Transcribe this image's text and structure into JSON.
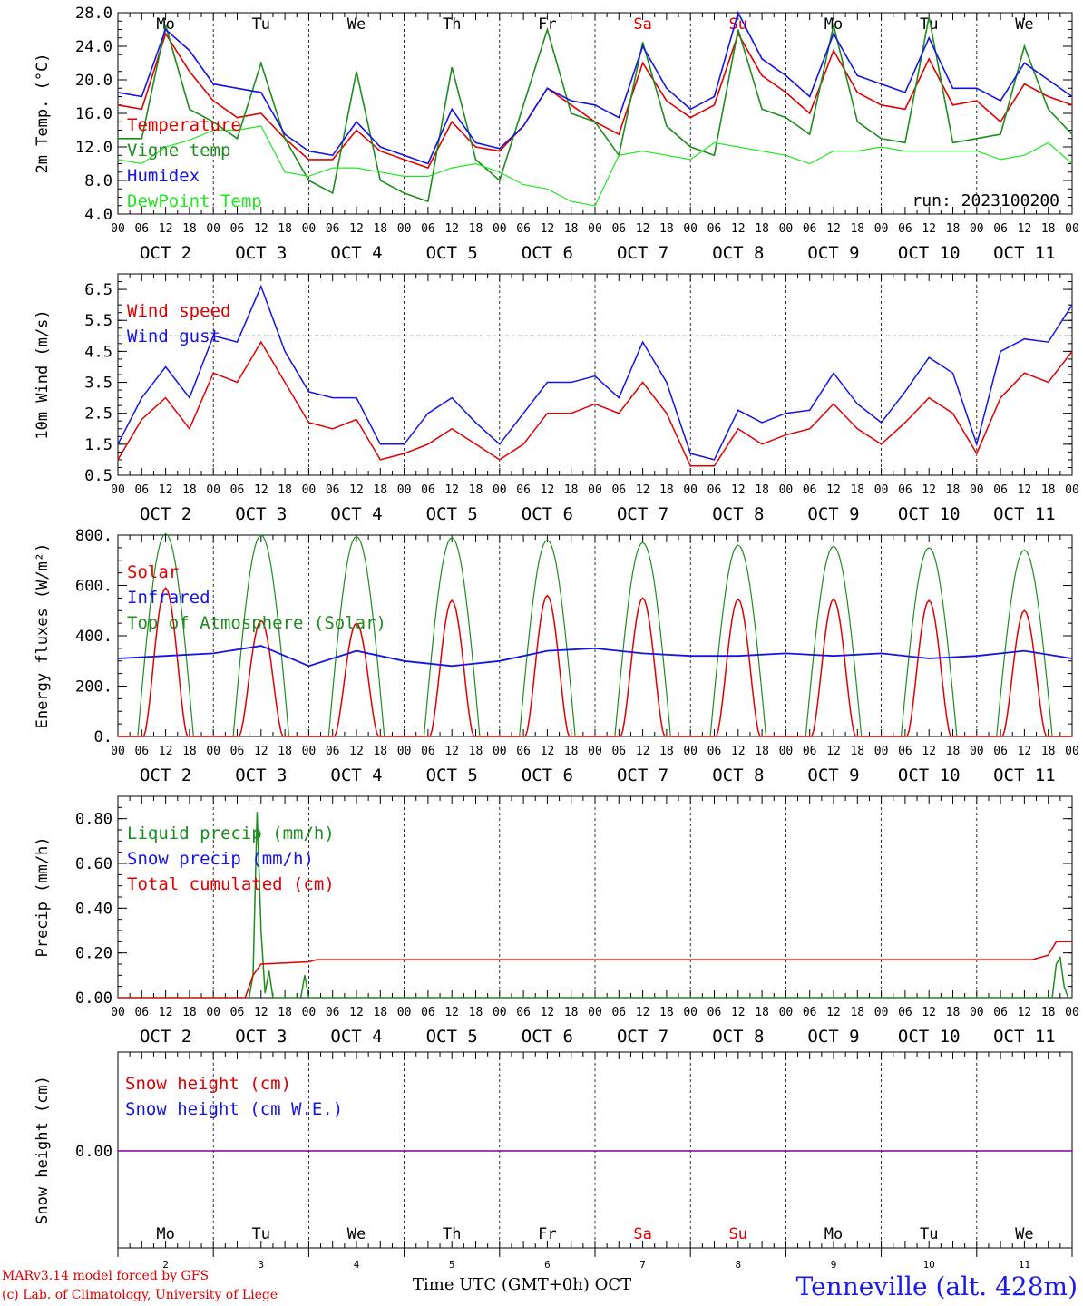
{
  "days": {
    "labels_top": [
      "Mo",
      "Tu",
      "We",
      "Th",
      "Fr",
      "Sa",
      "Su",
      "Mo",
      "Tu",
      "We"
    ],
    "label_colors": [
      "#000000",
      "#000000",
      "#000000",
      "#000000",
      "#000000",
      "#e00000",
      "#e00000",
      "#000000",
      "#000000",
      "#000000"
    ],
    "date_labels": [
      "OCT  2",
      "OCT  3",
      "OCT  4",
      "OCT  5",
      "OCT  6",
      "OCT  7",
      "OCT  8",
      "OCT  9",
      "OCT 10",
      "OCT 11"
    ],
    "day_numbers": [
      "2",
      "3",
      "4",
      "5",
      "6",
      "7",
      "8",
      "9",
      "10",
      "11"
    ],
    "hour_ticks": [
      "00",
      "06",
      "12",
      "18"
    ],
    "final_tick": "00"
  },
  "footer": {
    "credit_line1": "MARv3.14 model forced by GFS",
    "credit_line2": "(c) Lab. of Climatology, University of Liege",
    "x_title": "Time UTC (GMT+0h)",
    "x_unit": "OCT",
    "station": "Tenneville (alt. 428m)"
  },
  "colors": {
    "red": "#e00000",
    "green": "#1e8c1e",
    "blue": "#1414e6",
    "lightgreen": "#22e622",
    "purple": "#8000a0"
  },
  "chart_data": [
    {
      "type": "line",
      "ylabel": "2m Temp. (°C)",
      "ylim": [
        4,
        28
      ],
      "yticks": [
        "4.0",
        "8.0",
        "12.0",
        "16.0",
        "20.0",
        "24.0",
        "28.0"
      ],
      "yticks_values": [
        4,
        8,
        12,
        16,
        20,
        24,
        28
      ],
      "annotation": "run: 2023100200",
      "legend_placement": "left",
      "x_hours": [
        0,
        6,
        12,
        18,
        24,
        30,
        36,
        42,
        48,
        54,
        60,
        66,
        72,
        78,
        84,
        90,
        96,
        102,
        108,
        114,
        120,
        126,
        132,
        138,
        144,
        150,
        156,
        162,
        168,
        174,
        180,
        186,
        192,
        198,
        204,
        210,
        216,
        222,
        228,
        234,
        240
      ],
      "series": [
        {
          "name": "Temperature",
          "color": "red",
          "values": [
            17.0,
            16.5,
            25.5,
            21.0,
            17.5,
            15.5,
            16.0,
            13.0,
            10.5,
            10.5,
            14.0,
            11.5,
            10.5,
            9.5,
            15.0,
            12.0,
            11.5,
            14.5,
            19.0,
            17.0,
            15.0,
            13.5,
            22.0,
            17.5,
            15.5,
            17.0,
            25.5,
            20.5,
            18.5,
            16.0,
            23.5,
            18.5,
            17.0,
            16.5,
            22.5,
            17.0,
            17.5,
            15.0,
            19.5,
            18.0,
            17.0
          ]
        },
        {
          "name": "Vigne temp",
          "color": "green",
          "values": [
            13.0,
            13.0,
            26.5,
            16.5,
            15.0,
            13.0,
            22.0,
            13.0,
            8.0,
            6.5,
            21.0,
            8.0,
            6.5,
            5.5,
            21.5,
            10.5,
            8.0,
            17.0,
            26.0,
            16.0,
            15.0,
            11.0,
            24.5,
            14.5,
            12.0,
            11.0,
            26.0,
            16.5,
            15.5,
            13.5,
            26.5,
            15.0,
            13.0,
            12.5,
            27.5,
            12.5,
            13.0,
            13.5,
            24.0,
            16.5,
            13.5
          ]
        },
        {
          "name": "Humidex",
          "color": "blue",
          "values": [
            18.5,
            18.0,
            26.0,
            23.5,
            19.5,
            19.0,
            18.5,
            13.5,
            11.5,
            11.0,
            15.0,
            12.0,
            11.0,
            10.0,
            16.5,
            12.5,
            11.8,
            14.5,
            19.0,
            17.5,
            17.0,
            15.5,
            24.0,
            19.0,
            16.5,
            18.0,
            28.0,
            22.5,
            20.5,
            18.0,
            25.5,
            20.5,
            19.5,
            18.5,
            25.0,
            19.0,
            19.0,
            17.5,
            22.0,
            20.0,
            18.0
          ]
        },
        {
          "name": "DewPoint Temp",
          "color": "lightgreen",
          "values": [
            10.5,
            10.0,
            12.0,
            12.8,
            14.0,
            14.0,
            14.5,
            9.0,
            8.5,
            9.5,
            9.5,
            9.0,
            8.5,
            8.5,
            9.5,
            10.0,
            9.0,
            7.5,
            7.0,
            5.5,
            5.0,
            11.0,
            11.5,
            11.0,
            10.5,
            12.5,
            12.0,
            11.5,
            11.0,
            10.0,
            11.5,
            11.5,
            12.0,
            11.5,
            11.5,
            11.5,
            11.5,
            10.5,
            11.0,
            12.5,
            10.0
          ]
        }
      ]
    },
    {
      "type": "line",
      "ylabel": "10m Wind (m/s)",
      "ylim": [
        0.5,
        7.0
      ],
      "yticks": [
        "0.5",
        "1.5",
        "2.5",
        "3.5",
        "4.5",
        "5.5",
        "6.5"
      ],
      "yticks_values": [
        0.5,
        1.5,
        2.5,
        3.5,
        4.5,
        5.5,
        6.5
      ],
      "reference_line": 5.0,
      "legend_placement": "left",
      "x_hours": [
        0,
        6,
        12,
        18,
        24,
        30,
        36,
        42,
        48,
        54,
        60,
        66,
        72,
        78,
        84,
        90,
        96,
        102,
        108,
        114,
        120,
        126,
        132,
        138,
        144,
        150,
        156,
        162,
        168,
        174,
        180,
        186,
        192,
        198,
        204,
        210,
        216,
        222,
        228,
        234,
        240
      ],
      "series": [
        {
          "name": "Wind speed",
          "color": "red",
          "values": [
            1.0,
            2.3,
            3.0,
            2.0,
            3.8,
            3.5,
            4.8,
            3.5,
            2.2,
            2.0,
            2.3,
            1.0,
            1.2,
            1.5,
            2.0,
            1.5,
            1.0,
            1.5,
            2.5,
            2.5,
            2.8,
            2.5,
            3.5,
            2.5,
            0.8,
            0.8,
            2.0,
            1.5,
            1.8,
            2.0,
            2.8,
            2.0,
            1.5,
            2.2,
            3.0,
            2.5,
            1.2,
            3.0,
            3.8,
            3.5,
            4.5
          ]
        },
        {
          "name": "Wind gust",
          "color": "blue",
          "values": [
            1.5,
            3.0,
            4.0,
            3.0,
            5.0,
            4.8,
            6.6,
            4.5,
            3.2,
            3.0,
            3.0,
            1.5,
            1.5,
            2.5,
            3.0,
            2.2,
            1.5,
            2.5,
            3.5,
            3.5,
            3.7,
            3.0,
            4.8,
            3.5,
            1.2,
            1.0,
            2.6,
            2.2,
            2.5,
            2.6,
            3.8,
            2.8,
            2.2,
            3.2,
            4.3,
            3.8,
            1.5,
            4.5,
            4.9,
            4.8,
            6.0
          ]
        }
      ]
    },
    {
      "type": "line",
      "ylabel": "Energy fluxes (W/m²)",
      "ylim": [
        0,
        800
      ],
      "yticks": [
        "0.",
        "200.",
        "400.",
        "600.",
        "800."
      ],
      "yticks_values": [
        0,
        200,
        400,
        600,
        800
      ],
      "legend_placement": "left",
      "solar_peaks": [
        590,
        460,
        450,
        540,
        560,
        550,
        545,
        545,
        540,
        500
      ],
      "toa_peaks": [
        805,
        800,
        795,
        790,
        780,
        770,
        760,
        755,
        750,
        740
      ],
      "infrared_hours": [
        0,
        12,
        24,
        36,
        48,
        60,
        72,
        84,
        96,
        108,
        120,
        132,
        144,
        156,
        168,
        180,
        192,
        204,
        216,
        228,
        240
      ],
      "series": [
        {
          "name": "Solar",
          "color": "red"
        },
        {
          "name": "Infrared",
          "color": "blue",
          "values": [
            310,
            320,
            330,
            360,
            280,
            340,
            300,
            280,
            300,
            340,
            350,
            330,
            320,
            320,
            330,
            320,
            330,
            310,
            320,
            340,
            310
          ]
        },
        {
          "name": "Top of Atmosphere (Solar)",
          "color": "green"
        }
      ]
    },
    {
      "type": "line",
      "ylabel": "Precip (mm/h)",
      "ylim": [
        0,
        0.9
      ],
      "yticks": [
        "0.00",
        "0.20",
        "0.40",
        "0.60",
        "0.80"
      ],
      "yticks_values": [
        0,
        0.2,
        0.4,
        0.6,
        0.8
      ],
      "legend_placement": "left",
      "series": [
        {
          "name": "Liquid precip (mm/h)",
          "color": "green",
          "points": [
            [
              33,
              0
            ],
            [
              34,
              0.1
            ],
            [
              35,
              0.83
            ],
            [
              36,
              0.3
            ],
            [
              37,
              0.02
            ],
            [
              38,
              0.12
            ],
            [
              39,
              0
            ],
            [
              46,
              0
            ],
            [
              47,
              0.1
            ],
            [
              48,
              0
            ],
            [
              235,
              0
            ],
            [
              236,
              0.15
            ],
            [
              237,
              0.18
            ],
            [
              238,
              0.05
            ],
            [
              239,
              0
            ]
          ]
        },
        {
          "name": "Snow precip (mm/h)",
          "color": "blue",
          "points": []
        },
        {
          "name": "Total cumulated (cm)",
          "color": "red",
          "points": [
            [
              0,
              0
            ],
            [
              32,
              0
            ],
            [
              34,
              0.1
            ],
            [
              36,
              0.15
            ],
            [
              48,
              0.16
            ],
            [
              50,
              0.17
            ],
            [
              230,
              0.17
            ],
            [
              234,
              0.19
            ],
            [
              236,
              0.25
            ],
            [
              240,
              0.25
            ]
          ]
        }
      ]
    },
    {
      "type": "line",
      "ylabel": "Snow height (cm)",
      "yticks": [
        "0.00"
      ],
      "legend_placement": "left",
      "series": [
        {
          "name": "Snow height (cm)",
          "color": "red",
          "values": [
            0,
            0
          ]
        },
        {
          "name": "Snow height (cm W.E.)",
          "color": "blue",
          "values": [
            0,
            0
          ]
        }
      ]
    }
  ]
}
